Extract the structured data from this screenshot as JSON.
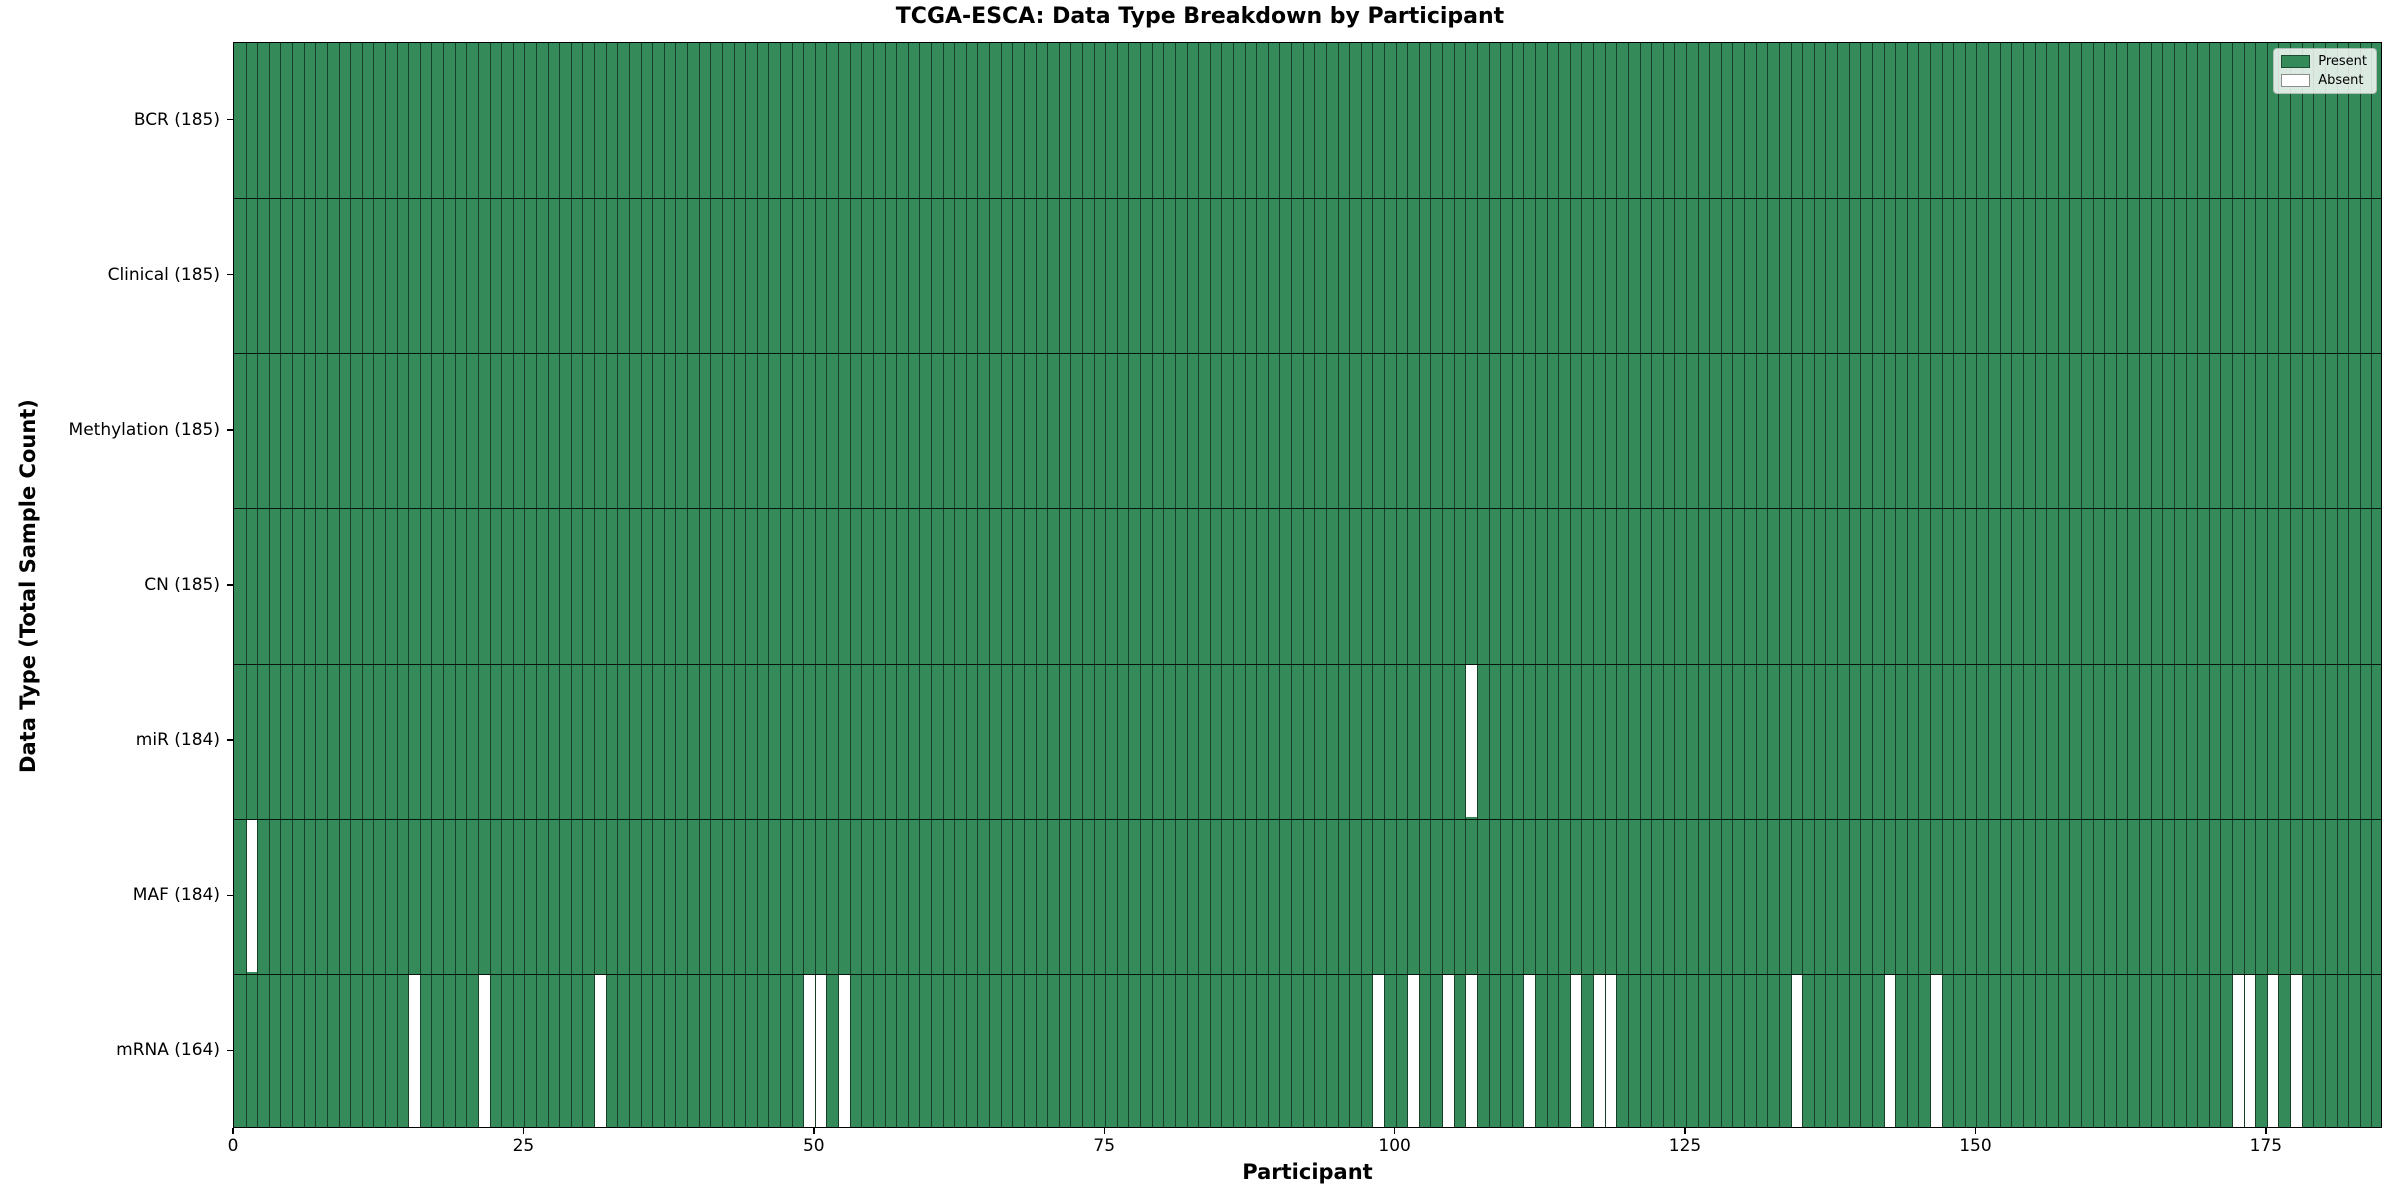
{
  "chart_data": {
    "type": "heatmap",
    "title": "TCGA-ESCA: Data Type Breakdown by Participant",
    "xlabel": "Participant",
    "ylabel": "Data Type (Total Sample Count)",
    "x_ticks": [
      0,
      25,
      50,
      75,
      100,
      125,
      150,
      175
    ],
    "x_range": [
      0,
      185
    ],
    "n_participants": 185,
    "grid": true,
    "legend_position": "upper right",
    "legend": [
      {
        "label": "Present",
        "color": "#348a58"
      },
      {
        "label": "Absent",
        "color": "#ffffff"
      }
    ],
    "colors": {
      "present": "#348a58",
      "absent": "#ffffff",
      "cell_edge": "#1a1a1a"
    },
    "rows": [
      {
        "label": "BCR (185)",
        "data_type": "BCR",
        "present_count": 185,
        "absent_indices": []
      },
      {
        "label": "Clinical (185)",
        "data_type": "Clinical",
        "present_count": 185,
        "absent_indices": []
      },
      {
        "label": "Methylation (185)",
        "data_type": "Methylation",
        "present_count": 185,
        "absent_indices": []
      },
      {
        "label": "CN (185)",
        "data_type": "CN",
        "present_count": 185,
        "absent_indices": []
      },
      {
        "label": "miR (184)",
        "data_type": "miR",
        "present_count": 184,
        "absent_indices": [
          106
        ]
      },
      {
        "label": "MAF (184)",
        "data_type": "MAF",
        "present_count": 184,
        "absent_indices": [
          1
        ]
      },
      {
        "label": "mRNA (164)",
        "data_type": "mRNA",
        "present_count": 164,
        "absent_indices": [
          15,
          21,
          31,
          49,
          50,
          52,
          98,
          101,
          104,
          106,
          111,
          115,
          117,
          118,
          134,
          142,
          146,
          172,
          173,
          175,
          177
        ]
      }
    ]
  }
}
